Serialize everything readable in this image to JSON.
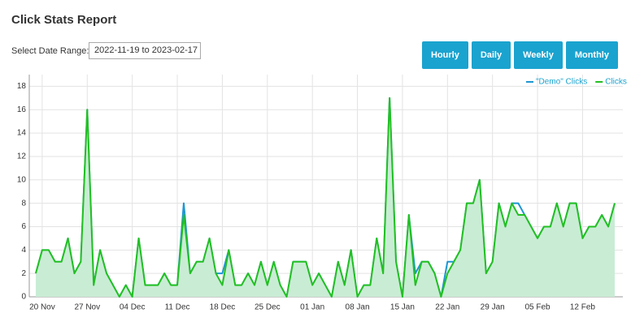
{
  "header": {
    "title": "Click Stats Report",
    "date_range_label": "Select Date Range:",
    "date_range_value": "2022-11-19 to 2023-02-17",
    "buttons": [
      "Hourly",
      "Daily",
      "Weekly",
      "Monthly"
    ]
  },
  "chart_data": {
    "type": "line",
    "categories": [
      null,
      "20 Nov",
      null,
      null,
      null,
      null,
      null,
      null,
      "27 Nov",
      null,
      null,
      null,
      null,
      null,
      null,
      "04 Dec",
      null,
      null,
      null,
      null,
      null,
      null,
      "11 Dec",
      null,
      null,
      null,
      null,
      null,
      null,
      "18 Dec",
      null,
      null,
      null,
      null,
      null,
      null,
      "25 Dec",
      null,
      null,
      null,
      null,
      null,
      null,
      "01 Jan",
      null,
      null,
      null,
      null,
      null,
      null,
      "08 Jan",
      null,
      null,
      null,
      null,
      null,
      null,
      "15 Jan",
      null,
      null,
      null,
      null,
      null,
      null,
      "22 Jan",
      null,
      null,
      null,
      null,
      null,
      null,
      "29 Jan",
      null,
      null,
      null,
      null,
      null,
      null,
      "05 Feb",
      null,
      null,
      null,
      null,
      null,
      null,
      "12 Feb",
      null,
      null,
      null,
      null,
      null
    ],
    "series": [
      {
        "name": "\"Demo\" Clicks",
        "color": "#1f96d2",
        "values": [
          2,
          4,
          4,
          3,
          3,
          5,
          2,
          3,
          16,
          1,
          4,
          2,
          1,
          0,
          1,
          0,
          5,
          1,
          1,
          1,
          2,
          1,
          1,
          8,
          2,
          3,
          3,
          5,
          2,
          2,
          4,
          1,
          1,
          2,
          1,
          3,
          1,
          3,
          1,
          0,
          3,
          3,
          3,
          1,
          2,
          1,
          0,
          3,
          1,
          4,
          0,
          1,
          1,
          5,
          2,
          17,
          3,
          0,
          7,
          2,
          3,
          3,
          2,
          0,
          3,
          3,
          4,
          8,
          8,
          10,
          2,
          3,
          8,
          6,
          8,
          8,
          7,
          6,
          5,
          6,
          6,
          8,
          6,
          8,
          8,
          5,
          6,
          6,
          7,
          6,
          8
        ]
      },
      {
        "name": "Clicks",
        "color": "#22c022",
        "fill": "#c9ecd5",
        "values": [
          2,
          4,
          4,
          3,
          3,
          5,
          2,
          3,
          16,
          1,
          4,
          2,
          1,
          0,
          1,
          0,
          5,
          1,
          1,
          1,
          2,
          1,
          1,
          7,
          2,
          3,
          3,
          5,
          2,
          1,
          4,
          1,
          1,
          2,
          1,
          3,
          1,
          3,
          1,
          0,
          3,
          3,
          3,
          1,
          2,
          1,
          0,
          3,
          1,
          4,
          0,
          1,
          1,
          5,
          2,
          17,
          3,
          0,
          7,
          1,
          3,
          3,
          2,
          0,
          2,
          3,
          4,
          8,
          8,
          10,
          2,
          3,
          8,
          6,
          8,
          7,
          7,
          6,
          5,
          6,
          6,
          8,
          6,
          8,
          8,
          5,
          6,
          6,
          7,
          6,
          8
        ]
      }
    ],
    "ylim": [
      0,
      19
    ],
    "yticks": [
      0,
      2,
      4,
      6,
      8,
      10,
      12,
      14,
      16,
      18
    ],
    "grid": true,
    "legend": "top-right"
  }
}
